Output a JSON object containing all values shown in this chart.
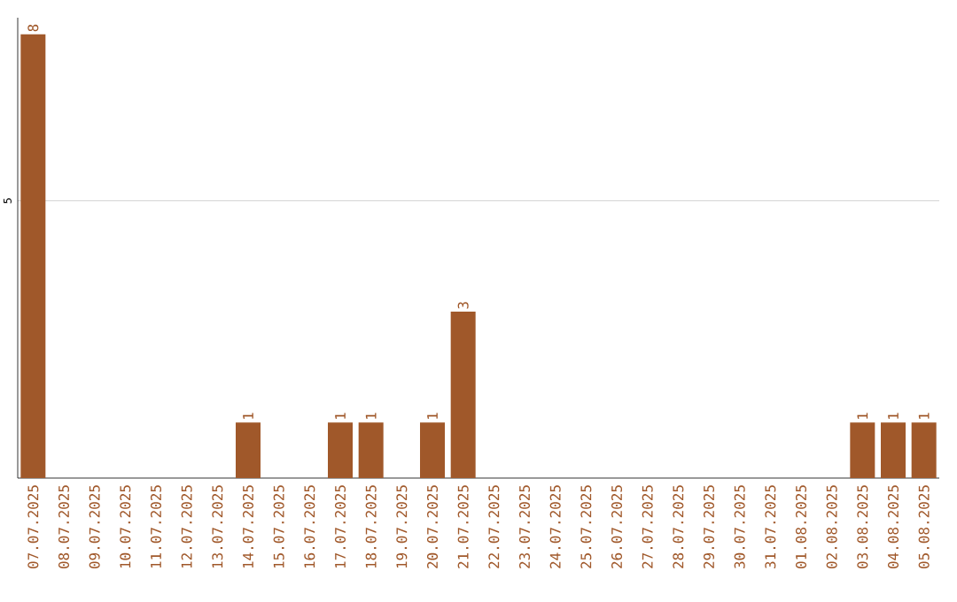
{
  "chart_data": {
    "type": "bar",
    "categories": [
      "07.07.2025",
      "08.07.2025",
      "09.07.2025",
      "10.07.2025",
      "11.07.2025",
      "12.07.2025",
      "13.07.2025",
      "14.07.2025",
      "15.07.2025",
      "16.07.2025",
      "17.07.2025",
      "18.07.2025",
      "19.07.2025",
      "20.07.2025",
      "21.07.2025",
      "22.07.2025",
      "23.07.2025",
      "24.07.2025",
      "25.07.2025",
      "26.07.2025",
      "27.07.2025",
      "28.07.2025",
      "29.07.2025",
      "30.07.2025",
      "31.07.2025",
      "01.08.2025",
      "02.08.2025",
      "03.08.2025",
      "04.08.2025",
      "05.08.2025"
    ],
    "values": [
      8,
      0,
      0,
      0,
      0,
      0,
      0,
      1,
      0,
      0,
      1,
      1,
      0,
      1,
      3,
      0,
      0,
      0,
      0,
      0,
      0,
      0,
      0,
      0,
      0,
      0,
      0,
      1,
      1,
      1
    ],
    "value_labels": [
      "8",
      null,
      null,
      null,
      null,
      null,
      null,
      "1",
      null,
      null,
      "1",
      "1",
      null,
      "1",
      "3",
      null,
      null,
      null,
      null,
      null,
      null,
      null,
      null,
      null,
      null,
      null,
      null,
      "1",
      "1",
      "1"
    ],
    "color": "#a0582a",
    "ylim": [
      0,
      8.3
    ],
    "yticks": [
      5
    ],
    "grid": "y"
  }
}
